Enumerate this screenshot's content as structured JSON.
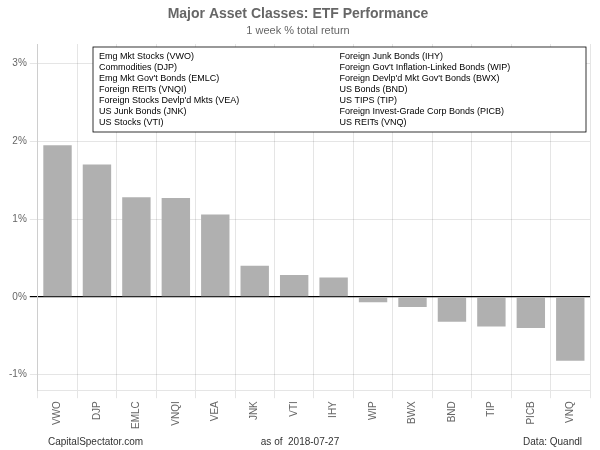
{
  "chart_data": {
    "type": "bar",
    "title": "Major Asset Classes: ETF Performance",
    "subtitle": "1 week % total return",
    "categories": [
      "VWO",
      "DJP",
      "EMLC",
      "VNQI",
      "VEA",
      "JNK",
      "VTI",
      "IHY",
      "WIP",
      "BWX",
      "BND",
      "TIP",
      "PICB",
      "VNQ"
    ],
    "values": [
      1.95,
      1.7,
      1.28,
      1.27,
      1.06,
      0.4,
      0.28,
      0.25,
      -0.07,
      -0.13,
      -0.32,
      -0.38,
      -0.4,
      -0.82
    ],
    "color": "#b0b0b0",
    "ylim": [
      -1.2,
      3.25
    ],
    "yticks": [
      {
        "value": -1.0,
        "label": "-1%"
      },
      {
        "value": 0.0,
        "label": "0%"
      },
      {
        "value": 1.0,
        "label": "1%"
      },
      {
        "value": 2.0,
        "label": "2%"
      },
      {
        "value": 3.0,
        "label": "3%"
      }
    ],
    "grid": true,
    "annotations": [
      "Emg Mkt Stocks (VWO)",
      "Commodities (DJP)",
      "Emg Mkt Gov't Bonds (EMLC)",
      "Foreign REITs (VNQI)",
      "Foreign Stocks Devlp'd Mkts (VEA)",
      "US Junk Bonds (JNK)",
      "US Stocks (VTI)",
      "Foreign Junk Bonds (IHY)",
      "Foreign Gov't Inflation-Linked Bonds (WIP)",
      "Foreign Devlp'd Mkt Gov't Bonds (BWX)",
      "US Bonds (BND)",
      "US TIPS (TIP)",
      "Foreign Invest-Grade Corp Bonds (PICB)",
      "US REITs (VNQ)"
    ],
    "footer": [
      "CapitalSpectator.com",
      "as of  2018-07-27",
      "Data: Quandl"
    ]
  }
}
